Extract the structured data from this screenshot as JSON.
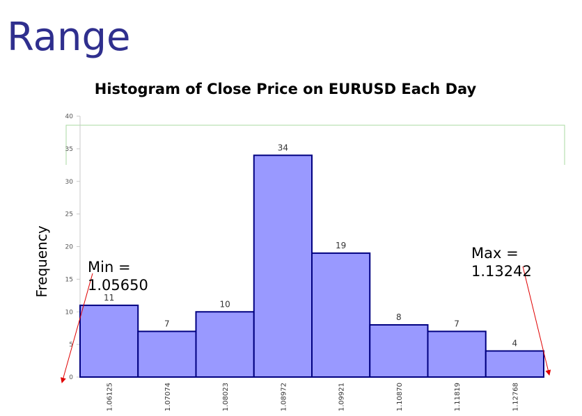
{
  "slide": {
    "title": "Range"
  },
  "chart_data": {
    "type": "bar",
    "title": "Histogram of Close Price on EURUSD Each Day",
    "xlabel": "",
    "ylabel": "Frequency",
    "categories": [
      "1.06125",
      "1.07074",
      "1.08023",
      "1.08972",
      "1.09921",
      "1.10870",
      "1.11819",
      "1.12768"
    ],
    "values": [
      11,
      7,
      10,
      34,
      19,
      8,
      7,
      4
    ],
    "ylim": [
      0,
      40
    ],
    "yticks": [
      0,
      5,
      10,
      15,
      20,
      25,
      30,
      35,
      40
    ],
    "bar_color": "#9999ff",
    "bar_edge_color": "#000080",
    "annotations": {
      "min": {
        "label": "Min =",
        "value": "1.05650"
      },
      "max": {
        "label": "Max =",
        "value": "1.13242"
      }
    },
    "arrow_color": "#e00000"
  }
}
